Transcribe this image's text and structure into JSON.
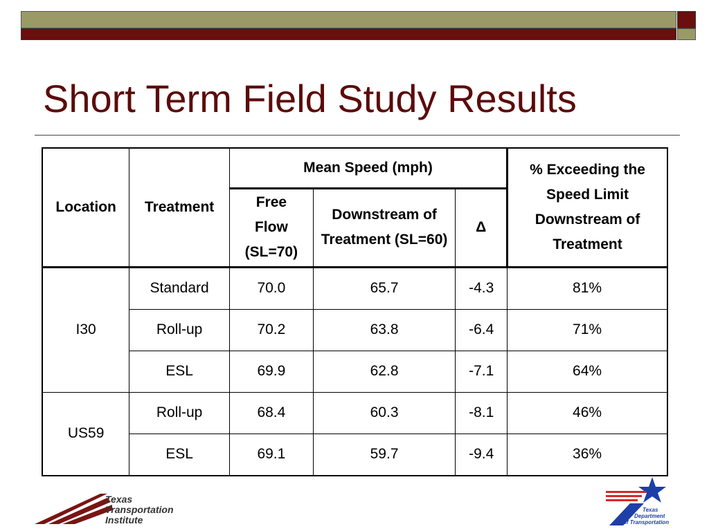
{
  "title": "Short Term Field Study Results",
  "table": {
    "headers": {
      "location": "Location",
      "treatment": "Treatment",
      "mean_speed": "Mean Speed (mph)",
      "free_flow": "Free Flow (SL=70)",
      "downstream": "Downstream of Treatment (SL=60)",
      "delta": "Δ",
      "exceeding": "% Exceeding the Speed Limit Downstream of Treatment"
    },
    "groups": [
      {
        "location": "I30",
        "rows": [
          {
            "treatment": "Standard",
            "free_flow": "70.0",
            "downstream": "65.7",
            "delta": "-4.3",
            "exceeding": "81%"
          },
          {
            "treatment": "Roll-up",
            "free_flow": "70.2",
            "downstream": "63.8",
            "delta": "-6.4",
            "exceeding": "71%"
          },
          {
            "treatment": "ESL",
            "free_flow": "69.9",
            "downstream": "62.8",
            "delta": "-7.1",
            "exceeding": "64%"
          }
        ]
      },
      {
        "location": "US59",
        "rows": [
          {
            "treatment": "Roll-up",
            "free_flow": "68.4",
            "downstream": "60.3",
            "delta": "-8.1",
            "exceeding": "46%"
          },
          {
            "treatment": "ESL",
            "free_flow": "69.1",
            "downstream": "59.7",
            "delta": "-9.4",
            "exceeding": "36%"
          }
        ]
      }
    ]
  },
  "logos": {
    "tti": "Texas Transportation Institute",
    "txdot": "Texas Department of Transportation"
  },
  "colors": {
    "title": "#5c0b0b",
    "band_olive": "#9a9a66",
    "band_maroon": "#6b0e0e",
    "txdot_blue": "#1e3fa8",
    "txdot_red": "#d62828"
  }
}
